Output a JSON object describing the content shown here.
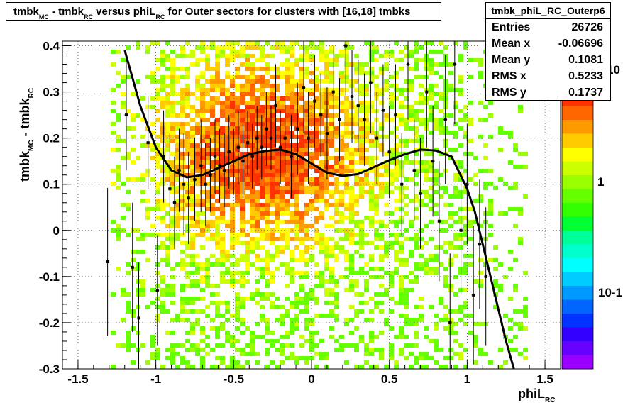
{
  "title": {
    "p1": "tmbk",
    "s1": "MC",
    "p2": " - tmbk",
    "s2": "RC",
    "p3": " versus phiL",
    "s3": "RC",
    "p4": " for Outer sectors for clusters with [16,18] tmbks"
  },
  "stats": {
    "name": "tmbk_phiL_RC_Outerp6",
    "rows": [
      {
        "label": "Entries",
        "value": "26726"
      },
      {
        "label": "Mean x",
        "value": "-0.06696"
      },
      {
        "label": "Mean y",
        "value": "0.1081"
      },
      {
        "label": "RMS x",
        "value": "0.5233"
      },
      {
        "label": "RMS y",
        "value": "0.1737"
      }
    ]
  },
  "chart_data": {
    "type": "heatmap",
    "title": "tmbk_MC - tmbk_RC versus phiL_RC for Outer sectors for clusters with [16,18] tmbks",
    "xlabel": "phiL_RC",
    "ylabel": "tmbk_MC - tmbk_RC",
    "xlim": [
      -1.6,
      1.6
    ],
    "ylim": [
      -0.3,
      0.41
    ],
    "x_ticks": [
      "-1.5",
      "-1",
      "-0.5",
      "0",
      "0.5",
      "1",
      "1.5"
    ],
    "y_ticks": [
      "-0.3",
      "-0.2",
      "-0.1",
      "0",
      "0.1",
      "0.2",
      "0.3",
      "0.4"
    ],
    "z_scale": "log",
    "palette_ticks": [
      "10",
      "1",
      "10-1"
    ],
    "grid": true,
    "density_peak": {
      "x": -0.3,
      "y": 0.17
    },
    "profile_points": [
      {
        "x": -1.31,
        "y": -0.068,
        "err": 0.16
      },
      {
        "x": -1.19,
        "y": 0.25,
        "err": 0.12
      },
      {
        "x": -1.15,
        "y": -0.08,
        "err": 0.14
      },
      {
        "x": -1.11,
        "y": -0.19,
        "err": 0.12
      },
      {
        "x": -1.05,
        "y": 0.19,
        "err": 0.1
      },
      {
        "x": -0.99,
        "y": -0.13,
        "err": 0.12
      },
      {
        "x": -0.95,
        "y": 0.16,
        "err": 0.1
      },
      {
        "x": -0.91,
        "y": 0.09,
        "err": 0.12
      },
      {
        "x": -0.88,
        "y": 0.06,
        "err": 0.1
      },
      {
        "x": -0.85,
        "y": 0.13,
        "err": 0.09
      },
      {
        "x": -0.82,
        "y": 0.1,
        "err": 0.11
      },
      {
        "x": -0.79,
        "y": 0.07,
        "err": 0.1
      },
      {
        "x": -0.75,
        "y": 0.11,
        "err": 0.09
      },
      {
        "x": -0.71,
        "y": 0.14,
        "err": 0.1
      },
      {
        "x": -0.68,
        "y": 0.1,
        "err": 0.09
      },
      {
        "x": -0.65,
        "y": 0.12,
        "err": 0.08
      },
      {
        "x": -0.62,
        "y": 0.16,
        "err": 0.08
      },
      {
        "x": -0.59,
        "y": 0.14,
        "err": 0.08
      },
      {
        "x": -0.56,
        "y": 0.13,
        "err": 0.08
      },
      {
        "x": -0.53,
        "y": 0.17,
        "err": 0.08
      },
      {
        "x": -0.5,
        "y": 0.15,
        "err": 0.07
      },
      {
        "x": -0.47,
        "y": 0.18,
        "err": 0.08
      },
      {
        "x": -0.44,
        "y": 0.15,
        "err": 0.08
      },
      {
        "x": -0.41,
        "y": 0.19,
        "err": 0.07
      },
      {
        "x": -0.38,
        "y": 0.16,
        "err": 0.07
      },
      {
        "x": -0.35,
        "y": 0.2,
        "err": 0.07
      },
      {
        "x": -0.32,
        "y": 0.18,
        "err": 0.07
      },
      {
        "x": -0.29,
        "y": 0.22,
        "err": 0.08
      },
      {
        "x": -0.26,
        "y": 0.2,
        "err": 0.07
      },
      {
        "x": -0.23,
        "y": 0.27,
        "err": 0.09
      },
      {
        "x": -0.2,
        "y": 0.18,
        "err": 0.08
      },
      {
        "x": -0.17,
        "y": 0.2,
        "err": 0.08
      },
      {
        "x": -0.13,
        "y": 0.16,
        "err": 0.09
      },
      {
        "x": -0.09,
        "y": 0.22,
        "err": 0.1
      },
      {
        "x": -0.05,
        "y": 0.31,
        "err": 0.1
      },
      {
        "x": -0.02,
        "y": 0.2,
        "err": 0.1
      },
      {
        "x": 0.02,
        "y": 0.28,
        "err": 0.1
      },
      {
        "x": 0.06,
        "y": 0.25,
        "err": 0.09
      },
      {
        "x": 0.1,
        "y": 0.21,
        "err": 0.1
      },
      {
        "x": 0.14,
        "y": 0.3,
        "err": 0.1
      },
      {
        "x": 0.18,
        "y": 0.24,
        "err": 0.09
      },
      {
        "x": 0.22,
        "y": 0.4,
        "err": 0.11
      },
      {
        "x": 0.26,
        "y": 0.29,
        "err": 0.1
      },
      {
        "x": 0.3,
        "y": 0.27,
        "err": 0.1
      },
      {
        "x": 0.34,
        "y": 0.24,
        "err": 0.1
      },
      {
        "x": 0.38,
        "y": 0.32,
        "err": 0.11
      },
      {
        "x": 0.42,
        "y": 0.2,
        "err": 0.1
      },
      {
        "x": 0.46,
        "y": 0.26,
        "err": 0.1
      },
      {
        "x": 0.5,
        "y": 0.17,
        "err": 0.1
      },
      {
        "x": 0.54,
        "y": 0.25,
        "err": 0.11
      },
      {
        "x": 0.58,
        "y": 0.1,
        "err": 0.11
      },
      {
        "x": 0.62,
        "y": 0.36,
        "err": 0.12
      },
      {
        "x": 0.66,
        "y": 0.13,
        "err": 0.11
      },
      {
        "x": 0.7,
        "y": 0.08,
        "err": 0.12
      },
      {
        "x": 0.74,
        "y": 0.3,
        "err": 0.12
      },
      {
        "x": 0.78,
        "y": 0.15,
        "err": 0.12
      },
      {
        "x": 0.82,
        "y": 0.02,
        "err": 0.13
      },
      {
        "x": 0.86,
        "y": 0.24,
        "err": 0.14
      },
      {
        "x": 0.89,
        "y": -0.2,
        "err": 0.15
      },
      {
        "x": 0.92,
        "y": 0.36,
        "err": 0.13
      },
      {
        "x": 0.96,
        "y": 0.0,
        "err": 0.14
      },
      {
        "x": 1.0,
        "y": 0.1,
        "err": 0.13
      },
      {
        "x": 1.04,
        "y": -0.14,
        "err": 0.15
      },
      {
        "x": 1.08,
        "y": -0.03,
        "err": 0.14
      },
      {
        "x": 1.12,
        "y": -0.1,
        "err": 0.15
      }
    ],
    "fit_curve": {
      "x": [
        -1.2,
        -1.1,
        -1.0,
        -0.9,
        -0.8,
        -0.7,
        -0.6,
        -0.5,
        -0.4,
        -0.3,
        -0.2,
        -0.1,
        0.0,
        0.1,
        0.2,
        0.3,
        0.4,
        0.5,
        0.6,
        0.7,
        0.8,
        0.9,
        1.0,
        1.05,
        1.1,
        1.15,
        1.2,
        1.25,
        1.3
      ],
      "y": [
        0.39,
        0.27,
        0.18,
        0.13,
        0.115,
        0.12,
        0.135,
        0.15,
        0.165,
        0.172,
        0.175,
        0.165,
        0.145,
        0.125,
        0.118,
        0.122,
        0.137,
        0.152,
        0.165,
        0.175,
        0.173,
        0.16,
        0.09,
        0.04,
        -0.03,
        -0.1,
        -0.17,
        -0.24,
        -0.3
      ]
    }
  }
}
